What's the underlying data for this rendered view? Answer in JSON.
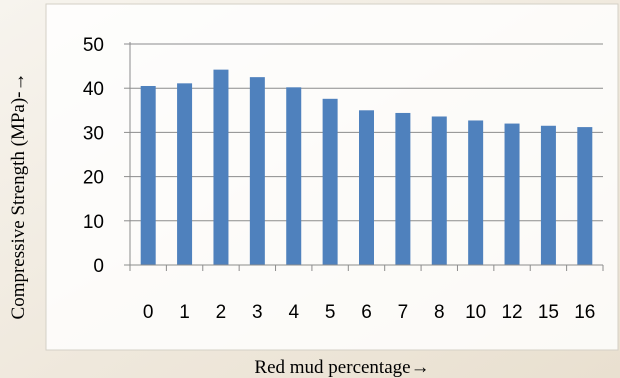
{
  "chart_data": {
    "type": "bar",
    "categories": [
      "0",
      "1",
      "2",
      "3",
      "4",
      "5",
      "6",
      "7",
      "8",
      "10",
      "12",
      "15",
      "16"
    ],
    "values": [
      40.5,
      41.1,
      44.2,
      42.5,
      40.2,
      37.6,
      35.0,
      34.4,
      33.6,
      32.7,
      32.0,
      31.5,
      31.2
    ],
    "title": "",
    "xlabel": "Red mud percentage→",
    "ylabel": "Compressive Strength  (MPa)-→",
    "ylim": [
      0,
      50
    ],
    "yticks": [
      0,
      10,
      20,
      30,
      40,
      50
    ],
    "grid": true,
    "legend": "none",
    "bar_color": "#4f81bd"
  }
}
